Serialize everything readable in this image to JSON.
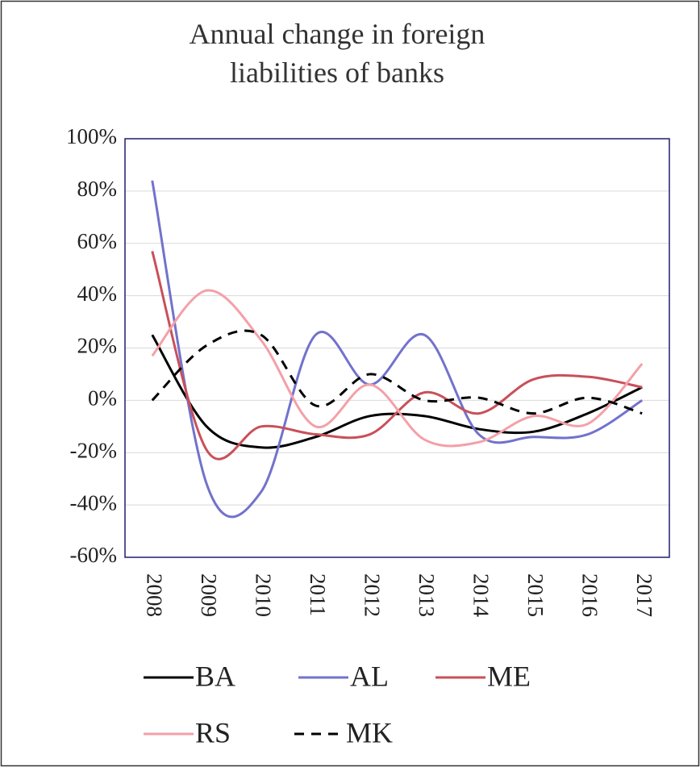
{
  "chart_data": {
    "type": "line",
    "title": "Annual change in foreign liabilities of banks",
    "categories": [
      "2008",
      "2009",
      "2010",
      "2011",
      "2012",
      "2013",
      "2014",
      "2015",
      "2016",
      "2017"
    ],
    "series": [
      {
        "name": "BA",
        "color": "#000000",
        "dash": false,
        "values": [
          25,
          -10,
          -18,
          -14,
          -6,
          -6,
          -11,
          -12,
          -5,
          5
        ]
      },
      {
        "name": "AL",
        "color": "#7272cc",
        "dash": false,
        "values": [
          84,
          -32,
          -35,
          25,
          6,
          25,
          -13,
          -14,
          -13,
          0
        ]
      },
      {
        "name": "ME",
        "color": "#c8505a",
        "dash": false,
        "values": [
          57,
          -19,
          -10,
          -13,
          -13,
          3,
          -5,
          8,
          9,
          5
        ]
      },
      {
        "name": "RS",
        "color": "#f4a0a8",
        "dash": false,
        "values": [
          17,
          42,
          23,
          -10,
          6,
          -15,
          -16,
          -6,
          -9,
          14
        ]
      },
      {
        "name": "MK",
        "color": "#000000",
        "dash": true,
        "values": [
          0,
          21,
          25,
          -2,
          10,
          0,
          1,
          -5,
          1,
          -5
        ]
      }
    ],
    "ylim": [
      -60,
      100
    ],
    "yticks": [
      {
        "value": 100,
        "label": "100%"
      },
      {
        "value": 80,
        "label": "80%"
      },
      {
        "value": 60,
        "label": "60%"
      },
      {
        "value": 40,
        "label": "40%"
      },
      {
        "value": 20,
        "label": "20%"
      },
      {
        "value": 0,
        "label": "0%"
      },
      {
        "value": -20,
        "label": "-20%"
      },
      {
        "value": -40,
        "label": "-40%"
      },
      {
        "value": -60,
        "label": "-60%"
      }
    ],
    "grid": true,
    "smooth": true,
    "legend": "bottom"
  }
}
